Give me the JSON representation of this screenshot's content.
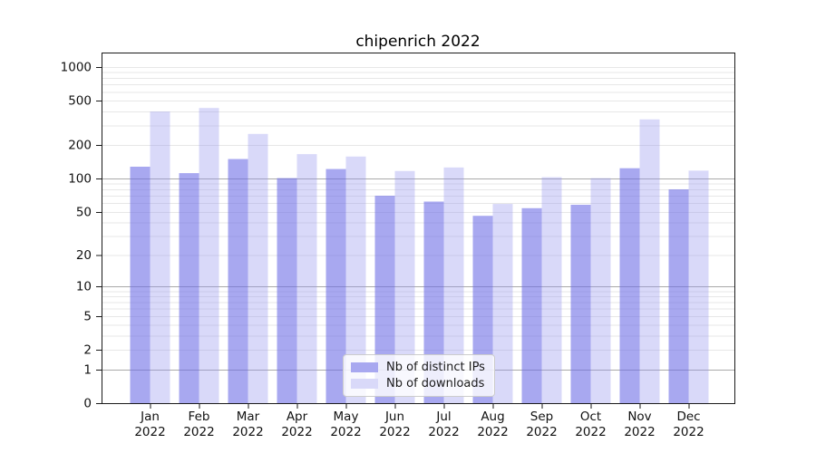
{
  "chart_data": {
    "type": "bar",
    "title": "chipenrich 2022",
    "categories": [
      "Jan",
      "Feb",
      "Mar",
      "Apr",
      "May",
      "Jun",
      "Jul",
      "Aug",
      "Sep",
      "Oct",
      "Nov",
      "Dec"
    ],
    "x_tick_year": "2022",
    "series": [
      {
        "name": "Nb of distinct IPs",
        "values": [
          128,
          112,
          150,
          101,
          122,
          70,
          62,
          46,
          54,
          58,
          124,
          80
        ]
      },
      {
        "name": "Nb of downloads",
        "values": [
          400,
          430,
          252,
          166,
          158,
          117,
          126,
          59,
          103,
          101,
          340,
          118
        ]
      }
    ],
    "yscale": "log1p",
    "y_ticks": [
      0,
      1,
      2,
      5,
      10,
      20,
      50,
      100,
      200,
      500,
      1000
    ],
    "ylim": [
      0,
      1300
    ],
    "xlabel": "",
    "ylabel": "",
    "grid": true,
    "legend_position": "lower center",
    "colors": {
      "bar_distinct_ips": "rgba(110,110,230,0.60)",
      "bar_downloads": "rgba(146,146,238,0.35)",
      "legend_swatch_distinct_ips": "#a8a8f0",
      "legend_swatch_downloads": "#d9d9f9",
      "grid_major": "#a9a9a9",
      "grid_minor": "#e7e7e7",
      "axis": "#1a1a1a",
      "text": "#111111"
    }
  }
}
